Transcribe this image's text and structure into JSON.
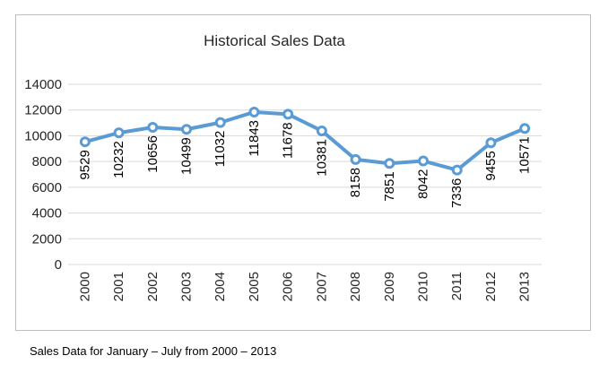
{
  "caption": "Sales Data for January – July from 2000 – 2013",
  "colors": {
    "series_line": "#5b9bd5",
    "marker_fill": "#ffffff",
    "gridline": "#d9d9d9",
    "axis_text": "#262626",
    "frame_border": "#bfbfbf"
  },
  "chart_data": {
    "type": "line",
    "title": "Historical Sales Data",
    "xlabel": "",
    "ylabel": "",
    "x": [
      "2000",
      "2001",
      "2002",
      "2003",
      "2004",
      "2005",
      "2006",
      "2007",
      "2008",
      "2009",
      "2010",
      "2011",
      "2012",
      "2013"
    ],
    "series": [
      {
        "values": [
          9529,
          10232,
          10656,
          10499,
          11032,
          11843,
          11678,
          10381,
          8158,
          7851,
          8042,
          7336,
          9455,
          10571
        ],
        "data_labels": [
          "9529",
          "10232",
          "10656",
          "10499",
          "11032",
          "11843",
          "11678",
          "10381",
          "8158",
          "7851",
          "8042",
          "7336",
          "9455",
          "10571"
        ]
      }
    ],
    "ylim": [
      0,
      14000
    ],
    "yticks": [
      0,
      2000,
      4000,
      6000,
      8000,
      10000,
      12000,
      14000
    ],
    "ytick_labels": [
      "0",
      "2000",
      "4000",
      "6000",
      "8000",
      "10000",
      "12000",
      "14000"
    ],
    "grid": true,
    "legend": "none",
    "markers": "circle",
    "data_label_rotation": "vertical"
  }
}
